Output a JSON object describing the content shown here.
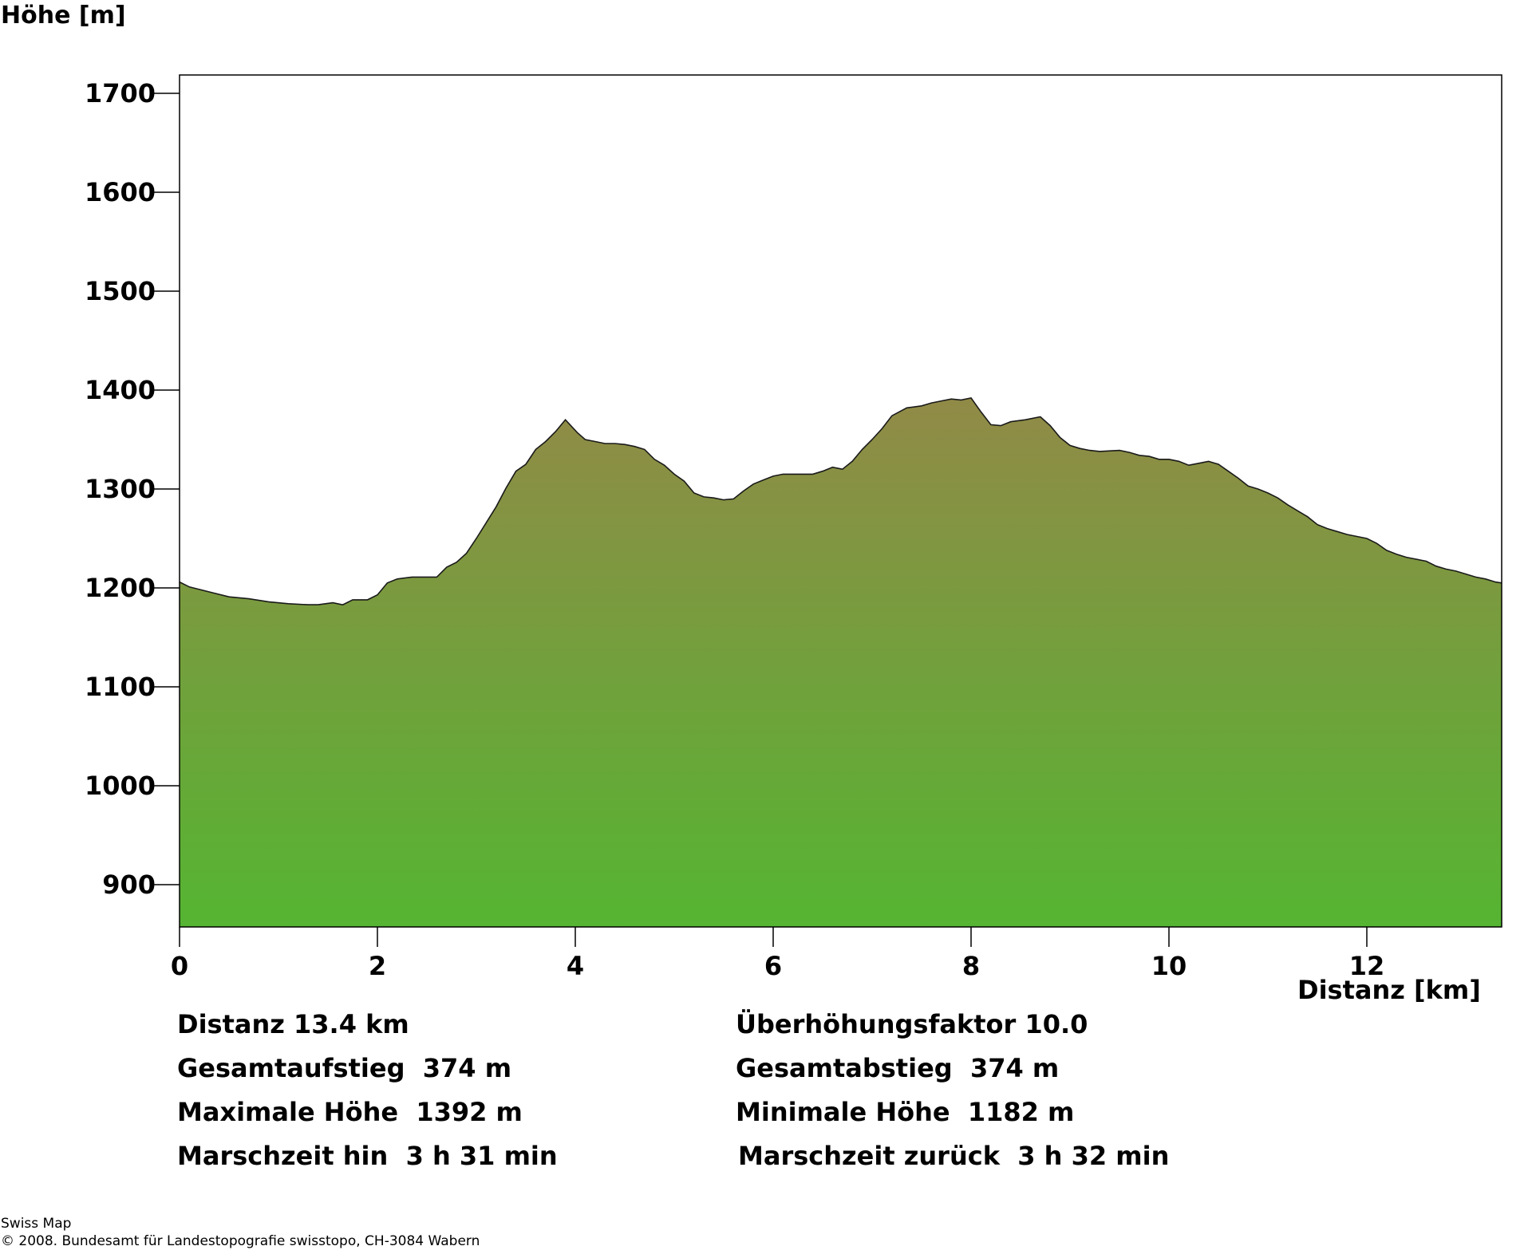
{
  "chart_data": {
    "type": "area",
    "title": "",
    "ylabel": "Höhe [m]",
    "xlabel": "Distanz [km]",
    "xlim": [
      0,
      13.4
    ],
    "ylim": [
      858,
      1718
    ],
    "x_ticks": [
      0,
      2,
      4,
      6,
      8,
      10,
      12
    ],
    "y_ticks": [
      900,
      1000,
      1100,
      1200,
      1300,
      1400,
      1500,
      1600,
      1700
    ],
    "grid": false,
    "legend": "none",
    "fill_gradient": {
      "top": "#918a47",
      "bottom": "#55b532"
    },
    "outline_color": "#1a1a1a",
    "series": [
      {
        "x": [
          0,
          0.1,
          0.3,
          0.5,
          0.7,
          0.9,
          1.1,
          1.3,
          1.4,
          1.55,
          1.65,
          1.75,
          1.9,
          2.0,
          2.1,
          2.2,
          2.35,
          2.45,
          2.6,
          2.7,
          2.8,
          2.9,
          3.0,
          3.1,
          3.2,
          3.3,
          3.4,
          3.5,
          3.6,
          3.7,
          3.8,
          3.9,
          4.02,
          4.1,
          4.2,
          4.3,
          4.4,
          4.5,
          4.6,
          4.7,
          4.8,
          4.9,
          5.0,
          5.1,
          5.2,
          5.3,
          5.4,
          5.5,
          5.6,
          5.7,
          5.8,
          5.9,
          6.0,
          6.1,
          6.3,
          6.4,
          6.5,
          6.6,
          6.7,
          6.8,
          6.9,
          7.0,
          7.1,
          7.2,
          7.35,
          7.5,
          7.6,
          7.7,
          7.8,
          7.9,
          8.0,
          8.1,
          8.2,
          8.3,
          8.4,
          8.55,
          8.7,
          8.8,
          8.9,
          9.0,
          9.1,
          9.2,
          9.3,
          9.5,
          9.6,
          9.7,
          9.8,
          9.9,
          10.0,
          10.1,
          10.2,
          10.3,
          10.4,
          10.5,
          10.6,
          10.7,
          10.8,
          10.9,
          11.0,
          11.1,
          11.2,
          11.3,
          11.4,
          11.5,
          11.6,
          11.7,
          11.8,
          11.9,
          12.0,
          12.1,
          12.2,
          12.3,
          12.4,
          12.6,
          12.7,
          12.8,
          12.9,
          13.0,
          13.1,
          13.2,
          13.3,
          13.4
        ],
        "values": [
          1206,
          1201,
          1196,
          1191,
          1189,
          1186,
          1184,
          1183,
          1183,
          1185,
          1183,
          1188,
          1188,
          1193,
          1205,
          1209,
          1211,
          1211,
          1211,
          1221,
          1226,
          1235,
          1250,
          1266,
          1282,
          1301,
          1318,
          1325,
          1340,
          1348,
          1358,
          1370,
          1357,
          1350,
          1348,
          1346,
          1346,
          1345,
          1343,
          1340,
          1330,
          1324,
          1315,
          1308,
          1296,
          1292,
          1291,
          1289,
          1290,
          1298,
          1305,
          1309,
          1313,
          1315,
          1315,
          1315,
          1318,
          1322,
          1320,
          1328,
          1340,
          1350,
          1361,
          1374,
          1382,
          1384,
          1387,
          1389,
          1391,
          1390,
          1392,
          1378,
          1365,
          1364,
          1368,
          1370,
          1373,
          1364,
          1352,
          1344,
          1341,
          1339,
          1338,
          1339,
          1337,
          1334,
          1333,
          1330,
          1330,
          1328,
          1324,
          1326,
          1328,
          1325,
          1318,
          1311,
          1303,
          1300,
          1296,
          1291,
          1284,
          1278,
          1272,
          1264,
          1260,
          1257,
          1254,
          1252,
          1250,
          1245,
          1238,
          1234,
          1231,
          1227,
          1222,
          1219,
          1217,
          1214,
          1211,
          1209,
          1206,
          1205
        ]
      }
    ]
  },
  "stats": {
    "distance": "Distanz 13.4 km",
    "exaggeration": "Überhöhungsfaktor 10.0",
    "ascent": "Gesamtaufstieg  374 m",
    "descent": "Gesamtabstieg  374 m",
    "max_height": "Maximale Höhe  1392 m",
    "min_height": "Minimale Höhe  1182 m",
    "time_forward": "Marschzeit hin  3 h 31 min",
    "time_back": "Marschzeit zurück  3 h 32 min"
  },
  "credits": {
    "line1": "Swiss Map",
    "line2": "© 2008. Bundesamt für Landestopografie swisstopo, CH-3084 Wabern"
  }
}
